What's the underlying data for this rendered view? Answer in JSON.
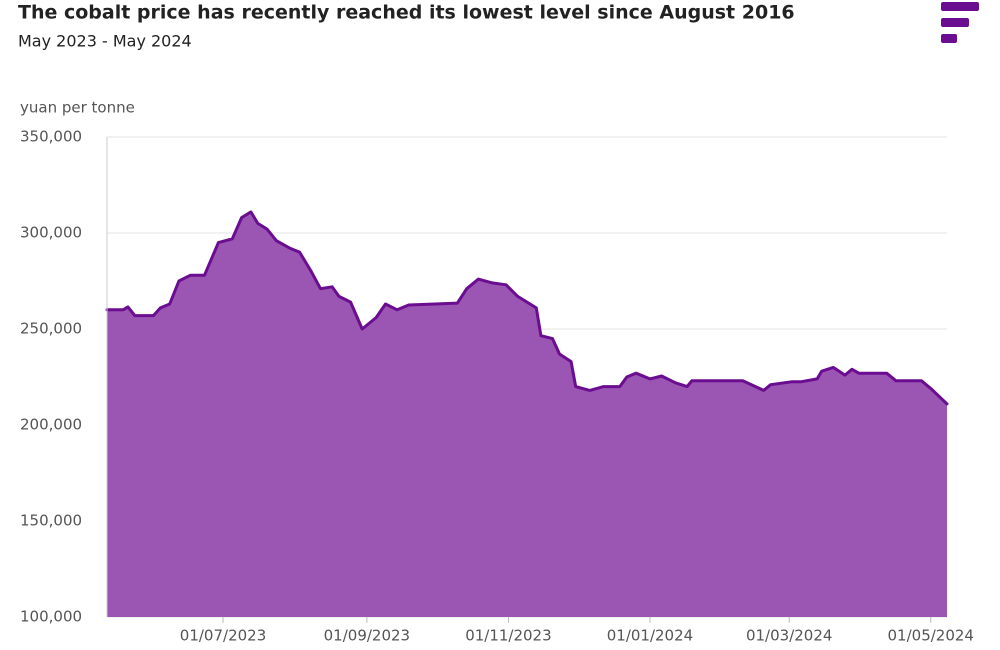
{
  "chart_data": {
    "type": "area",
    "title": "The cobalt price has recently reached its lowest level since August 2016",
    "subtitle": "May 2023 - May 2024",
    "y_label": "yuan per tonne",
    "line_color": "#6a0d91",
    "fill_color": "#9b55b2",
    "grid": true,
    "xlim": [
      "2023-05-12",
      "2024-05-08"
    ],
    "xticks": [
      {
        "value": "2023-07-01",
        "label": "01/07/2023"
      },
      {
        "value": "2023-09-01",
        "label": "01/09/2023"
      },
      {
        "value": "2023-11-01",
        "label": "01/11/2023"
      },
      {
        "value": "2024-01-01",
        "label": "01/01/2024"
      },
      {
        "value": "2024-03-01",
        "label": "01/03/2024"
      },
      {
        "value": "2024-05-01",
        "label": "01/05/2024"
      }
    ],
    "ylim": [
      100000,
      350000
    ],
    "yticks": [
      {
        "value": 100000,
        "label": "100,000"
      },
      {
        "value": 150000,
        "label": "150,000"
      },
      {
        "value": 200000,
        "label": "200,000"
      },
      {
        "value": 250000,
        "label": "250,000"
      },
      {
        "value": 300000,
        "label": "300,000"
      },
      {
        "value": 350000,
        "label": "350,000"
      }
    ],
    "x": [
      "2023-05-12",
      "2023-05-19",
      "2023-05-21",
      "2023-05-24",
      "2023-06-01",
      "2023-06-04",
      "2023-06-08",
      "2023-06-12",
      "2023-06-17",
      "2023-06-23",
      "2023-06-29",
      "2023-07-05",
      "2023-07-09",
      "2023-07-13",
      "2023-07-16",
      "2023-07-20",
      "2023-07-24",
      "2023-07-30",
      "2023-08-03",
      "2023-08-08",
      "2023-08-12",
      "2023-08-17",
      "2023-08-20",
      "2023-08-25",
      "2023-08-30",
      "2023-09-05",
      "2023-09-09",
      "2023-09-14",
      "2023-09-19",
      "2023-10-10",
      "2023-10-14",
      "2023-10-19",
      "2023-10-25",
      "2023-10-31",
      "2023-11-05",
      "2023-11-13",
      "2023-11-15",
      "2023-11-20",
      "2023-11-23",
      "2023-11-28",
      "2023-11-30",
      "2023-12-06",
      "2023-12-12",
      "2023-12-19",
      "2023-12-22",
      "2023-12-26",
      "2024-01-01",
      "2024-01-06",
      "2024-01-12",
      "2024-01-17",
      "2024-01-19",
      "2024-02-10",
      "2024-02-19",
      "2024-02-22",
      "2024-03-02",
      "2024-03-06",
      "2024-03-13",
      "2024-03-15",
      "2024-03-20",
      "2024-03-25",
      "2024-03-28",
      "2024-03-31",
      "2024-04-12",
      "2024-04-16",
      "2024-04-27",
      "2024-05-01",
      "2024-05-08"
    ],
    "values": [
      260000,
      260000,
      261500,
      257000,
      257000,
      261000,
      263000,
      275000,
      278000,
      278000,
      295000,
      297000,
      308000,
      311000,
      305000,
      302000,
      296000,
      292000,
      290000,
      280000,
      271000,
      272000,
      267000,
      264000,
      250000,
      256000,
      263000,
      260000,
      262500,
      263500,
      271000,
      276000,
      274000,
      273000,
      267000,
      261000,
      246500,
      245000,
      237000,
      233000,
      220000,
      218000,
      220000,
      220000,
      225000,
      227000,
      224000,
      225500,
      222000,
      220000,
      223000,
      223000,
      218000,
      221000,
      222500,
      222500,
      224000,
      228000,
      230000,
      226000,
      229000,
      227000,
      227000,
      223000,
      223000,
      219000,
      211000
    ]
  }
}
